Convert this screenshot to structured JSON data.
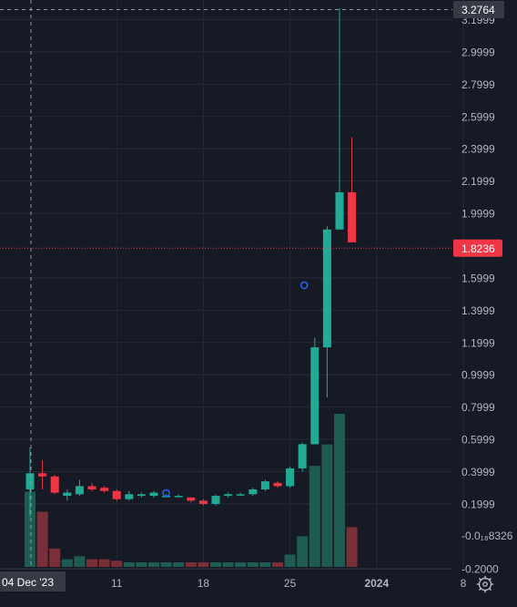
{
  "chart_data": {
    "type": "candlestick",
    "xlabel": "",
    "ylabel": "",
    "ylim": [
      -0.2,
      3.3
    ],
    "grid": true,
    "x_ticks": [
      "04 Dec '23",
      "11",
      "18",
      "25",
      "2024",
      "8"
    ],
    "y_ticks": [
      "3.1999",
      "2.9999",
      "2.7999",
      "2.5999",
      "2.3999",
      "2.1999",
      "1.9999",
      "1.5999",
      "1.3999",
      "1.1999",
      "0.9999",
      "0.7999",
      "0.5999",
      "0.3999",
      "0.1999",
      "-0.2000"
    ],
    "crosshair": {
      "date": "04 Dec '23",
      "price": "3.2764"
    },
    "last_price": {
      "label": "1.8236",
      "value": 1.8236
    },
    "partial_label": "-0.0₁₈8326",
    "candles": [
      {
        "date": "2023-12-04",
        "open": 0.29,
        "high": 0.55,
        "low": 0.12,
        "close": 0.39
      },
      {
        "date": "2023-12-05",
        "open": 0.39,
        "high": 0.47,
        "low": 0.29,
        "close": 0.37
      },
      {
        "date": "2023-12-06",
        "open": 0.37,
        "high": 0.38,
        "low": 0.26,
        "close": 0.27
      },
      {
        "date": "2023-12-07",
        "open": 0.25,
        "high": 0.29,
        "low": 0.22,
        "close": 0.27
      },
      {
        "date": "2023-12-08",
        "open": 0.26,
        "high": 0.35,
        "low": 0.25,
        "close": 0.31
      },
      {
        "date": "2023-12-09",
        "open": 0.31,
        "high": 0.33,
        "low": 0.28,
        "close": 0.29
      },
      {
        "date": "2023-12-10",
        "open": 0.3,
        "high": 0.31,
        "low": 0.27,
        "close": 0.28
      },
      {
        "date": "2023-12-11",
        "open": 0.28,
        "high": 0.29,
        "low": 0.22,
        "close": 0.23
      },
      {
        "date": "2023-12-12",
        "open": 0.23,
        "high": 0.28,
        "low": 0.22,
        "close": 0.26
      },
      {
        "date": "2023-12-13",
        "open": 0.25,
        "high": 0.27,
        "low": 0.24,
        "close": 0.26
      },
      {
        "date": "2023-12-14",
        "open": 0.25,
        "high": 0.28,
        "low": 0.24,
        "close": 0.27
      },
      {
        "date": "2023-12-15",
        "open": 0.25,
        "high": 0.26,
        "low": 0.24,
        "close": 0.25
      },
      {
        "date": "2023-12-16",
        "open": 0.25,
        "high": 0.26,
        "low": 0.24,
        "close": 0.25
      },
      {
        "date": "2023-12-17",
        "open": 0.24,
        "high": 0.24,
        "low": 0.21,
        "close": 0.22
      },
      {
        "date": "2023-12-18",
        "open": 0.22,
        "high": 0.23,
        "low": 0.19,
        "close": 0.2
      },
      {
        "date": "2023-12-19",
        "open": 0.2,
        "high": 0.26,
        "low": 0.19,
        "close": 0.25
      },
      {
        "date": "2023-12-20",
        "open": 0.25,
        "high": 0.27,
        "low": 0.24,
        "close": 0.26
      },
      {
        "date": "2023-12-21",
        "open": 0.26,
        "high": 0.27,
        "low": 0.25,
        "close": 0.26
      },
      {
        "date": "2023-12-22",
        "open": 0.26,
        "high": 0.3,
        "low": 0.25,
        "close": 0.29
      },
      {
        "date": "2023-12-23",
        "open": 0.29,
        "high": 0.35,
        "low": 0.28,
        "close": 0.34
      },
      {
        "date": "2023-12-24",
        "open": 0.33,
        "high": 0.34,
        "low": 0.3,
        "close": 0.31
      },
      {
        "date": "2023-12-25",
        "open": 0.31,
        "high": 0.43,
        "low": 0.3,
        "close": 0.42
      },
      {
        "date": "2023-12-26",
        "open": 0.42,
        "high": 0.58,
        "low": 0.4,
        "close": 0.57
      },
      {
        "date": "2023-12-27",
        "open": 0.57,
        "high": 1.23,
        "low": 0.57,
        "close": 1.17
      },
      {
        "date": "2023-12-28",
        "open": 1.17,
        "high": 1.92,
        "low": 0.86,
        "close": 1.9
      },
      {
        "date": "2023-12-29",
        "open": 1.9,
        "high": 3.27,
        "low": 1.9,
        "close": 2.13
      },
      {
        "date": "2023-12-30",
        "open": 2.13,
        "high": 2.47,
        "low": 1.82,
        "close": 1.82
      }
    ],
    "volume_relative": [
      0.49,
      0.36,
      0.12,
      0.05,
      0.07,
      0.05,
      0.05,
      0.04,
      0.03,
      0.03,
      0.03,
      0.03,
      0.03,
      0.03,
      0.03,
      0.03,
      0.03,
      0.03,
      0.03,
      0.03,
      0.03,
      0.08,
      0.2,
      0.66,
      0.8,
      1.0,
      0.26
    ],
    "colors": {
      "up": "#22ab94",
      "down": "#f23645",
      "vol_up": "#1e5c52",
      "vol_down": "#7a2e37",
      "background": "#161a25",
      "grid": "#252a37",
      "text": "#b2b5be",
      "price_line": "#f23645",
      "crosshair": "#9598a1"
    },
    "marker_icon": "event-circle-icon",
    "settings_icon": "gear-icon"
  }
}
